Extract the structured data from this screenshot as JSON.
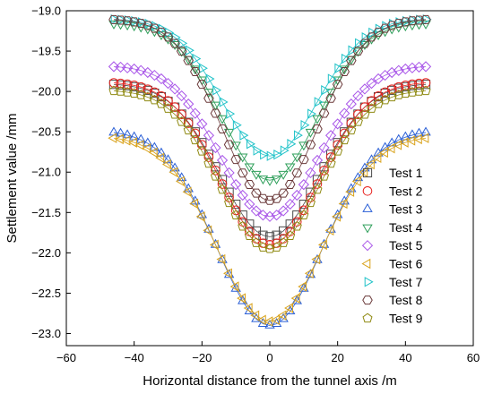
{
  "chart_data": {
    "type": "scatter",
    "title": "",
    "xlabel": "Horizontal distance from the tunnel axis /m",
    "ylabel": "Settlement value /mm",
    "xlim": [
      -60,
      60
    ],
    "ylim": [
      -23.15,
      -19.0
    ],
    "xticks": [
      -60,
      -40,
      -20,
      0,
      20,
      40,
      60
    ],
    "yticks": [
      -19.0,
      -19.5,
      -20.0,
      -20.5,
      -21.0,
      -21.5,
      -22.0,
      -22.5,
      -23.0
    ],
    "xtick_labels": [
      "−60",
      "−40",
      "−20",
      "0",
      "20",
      "40",
      "60"
    ],
    "ytick_labels": [
      "−19.0",
      "−19.5",
      "−20.0",
      "−20.5",
      "−21.0",
      "−21.5",
      "−22.0",
      "−22.5",
      "−23.0"
    ],
    "legend_position": "right",
    "grid": false,
    "x_range": [
      -46,
      46
    ],
    "x_step": 2,
    "series": [
      {
        "name": "Test 1",
        "marker": "square",
        "color": "#4a4a4a",
        "far_value": -19.9,
        "min_value": -21.8,
        "width": 14.5
      },
      {
        "name": "Test 2",
        "marker": "circle",
        "color": "#e8231f",
        "far_value": -19.88,
        "min_value": -21.9,
        "width": 14.5
      },
      {
        "name": "Test 3",
        "marker": "triangle-up",
        "color": "#2a5fd6",
        "far_value": -20.48,
        "min_value": -22.9,
        "width": 15.5
      },
      {
        "name": "Test 4",
        "marker": "triangle-down",
        "color": "#2e9f5a",
        "far_value": -19.15,
        "min_value": -21.1,
        "width": 14.0
      },
      {
        "name": "Test 5",
        "marker": "diamond",
        "color": "#a855e8",
        "far_value": -19.68,
        "min_value": -21.55,
        "width": 14.5
      },
      {
        "name": "Test 6",
        "marker": "triangle-left",
        "color": "#d9a21a",
        "far_value": -20.55,
        "min_value": -22.85,
        "width": 15.5
      },
      {
        "name": "Test 7",
        "marker": "triangle-right",
        "color": "#1fc2c8",
        "far_value": -19.1,
        "min_value": -20.8,
        "width": 14.0
      },
      {
        "name": "Test 8",
        "marker": "hexagon",
        "color": "#6b3a3a",
        "far_value": -19.1,
        "min_value": -21.35,
        "width": 14.0
      },
      {
        "name": "Test 9",
        "marker": "pentagon",
        "color": "#8f8a12",
        "far_value": -19.98,
        "min_value": -21.95,
        "width": 14.5
      }
    ]
  }
}
